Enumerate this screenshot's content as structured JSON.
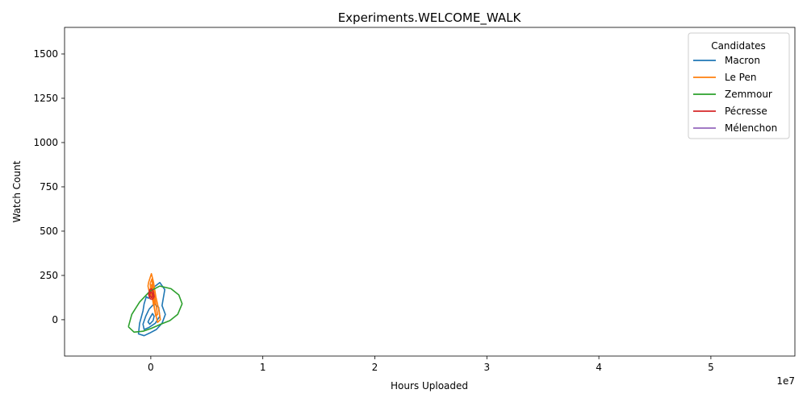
{
  "chart_data": {
    "type": "contour",
    "title": "Experiments.WELCOME_WALK",
    "xlabel": "Hours Uploaded",
    "ylabel": "Watch Count",
    "x_offset_label": "1e7",
    "xlim": [
      -7700000,
      57500000
    ],
    "ylim": [
      -205,
      1650
    ],
    "x_ticks": [
      {
        "value": 0,
        "label": "0"
      },
      {
        "value": 10000000,
        "label": "1"
      },
      {
        "value": 20000000,
        "label": "2"
      },
      {
        "value": 30000000,
        "label": "3"
      },
      {
        "value": 40000000,
        "label": "4"
      },
      {
        "value": 50000000,
        "label": "5"
      }
    ],
    "y_ticks": [
      {
        "value": 0,
        "label": "0"
      },
      {
        "value": 250,
        "label": "250"
      },
      {
        "value": 500,
        "label": "500"
      },
      {
        "value": 750,
        "label": "750"
      },
      {
        "value": 1000,
        "label": "1000"
      },
      {
        "value": 1250,
        "label": "1250"
      },
      {
        "value": 1500,
        "label": "1500"
      }
    ],
    "legend": {
      "title": "Candidates",
      "placement": "top-right"
    },
    "grid": false,
    "series": [
      {
        "name": "Macron",
        "color": "#1f77b4",
        "contours": [
          [
            [
              -200000,
              120
            ],
            [
              300000,
              185
            ],
            [
              800000,
              210
            ],
            [
              1250000,
              170
            ],
            [
              1000000,
              80
            ],
            [
              1300000,
              30
            ],
            [
              1000000,
              -20
            ],
            [
              500000,
              -55
            ],
            [
              -100000,
              -75
            ],
            [
              -600000,
              -90
            ],
            [
              -1100000,
              -80
            ],
            [
              -1000000,
              -20
            ],
            [
              -700000,
              50
            ],
            [
              -600000,
              90
            ],
            [
              -400000,
              130
            ],
            [
              -200000,
              120
            ]
          ],
          [
            [
              -150000,
              60
            ],
            [
              300000,
              90
            ],
            [
              700000,
              70
            ],
            [
              800000,
              20
            ],
            [
              400000,
              -20
            ],
            [
              -200000,
              -45
            ],
            [
              -600000,
              -55
            ],
            [
              -700000,
              -25
            ],
            [
              -450000,
              20
            ],
            [
              -150000,
              60
            ]
          ],
          [
            [
              -80000,
              10
            ],
            [
              150000,
              35
            ],
            [
              300000,
              20
            ],
            [
              200000,
              -5
            ],
            [
              -100000,
              -25
            ],
            [
              -250000,
              -12
            ],
            [
              -80000,
              10
            ]
          ]
        ]
      },
      {
        "name": "Le Pen",
        "color": "#ff7f0e",
        "contours": [
          [
            [
              -200000,
              210
            ],
            [
              50000,
              260
            ],
            [
              250000,
              210
            ],
            [
              450000,
              130
            ],
            [
              700000,
              60
            ],
            [
              850000,
              0
            ],
            [
              600000,
              -15
            ],
            [
              350000,
              60
            ],
            [
              200000,
              110
            ],
            [
              -150000,
              160
            ],
            [
              -250000,
              190
            ],
            [
              -200000,
              210
            ]
          ],
          [
            [
              -50000,
              205
            ],
            [
              100000,
              230
            ],
            [
              200000,
              180
            ],
            [
              400000,
              110
            ],
            [
              600000,
              30
            ],
            [
              450000,
              20
            ],
            [
              250000,
              90
            ],
            [
              0,
              160
            ],
            [
              -50000,
              205
            ]
          ],
          [
            [
              0,
              190
            ],
            [
              100000,
              200
            ],
            [
              200000,
              150
            ],
            [
              350000,
              90
            ],
            [
              250000,
              80
            ],
            [
              80000,
              150
            ],
            [
              0,
              190
            ]
          ]
        ]
      },
      {
        "name": "Zemmour",
        "color": "#2ca02c",
        "contours": [
          [
            [
              -2000000,
              -40
            ],
            [
              -1700000,
              30
            ],
            [
              -1000000,
              100
            ],
            [
              -100000,
              160
            ],
            [
              800000,
              190
            ],
            [
              1800000,
              175
            ],
            [
              2500000,
              140
            ],
            [
              2800000,
              90
            ],
            [
              2400000,
              30
            ],
            [
              1700000,
              -5
            ],
            [
              900000,
              -25
            ],
            [
              0,
              -50
            ],
            [
              -700000,
              -65
            ],
            [
              -1500000,
              -70
            ],
            [
              -2000000,
              -40
            ]
          ]
        ]
      },
      {
        "name": "Pécresse",
        "color": "#d62728",
        "contours": [
          [
            [
              -200000,
              140
            ],
            [
              -100000,
              170
            ],
            [
              50000,
              175
            ],
            [
              200000,
              160
            ],
            [
              300000,
              130
            ],
            [
              150000,
              115
            ],
            [
              -50000,
              118
            ],
            [
              -200000,
              140
            ]
          ],
          [
            [
              -100000,
              140
            ],
            [
              0,
              158
            ],
            [
              120000,
              150
            ],
            [
              180000,
              132
            ],
            [
              50000,
              125
            ],
            [
              -100000,
              140
            ]
          ]
        ]
      },
      {
        "name": "Mélenchon",
        "color": "#9467bd",
        "contours": []
      }
    ]
  }
}
